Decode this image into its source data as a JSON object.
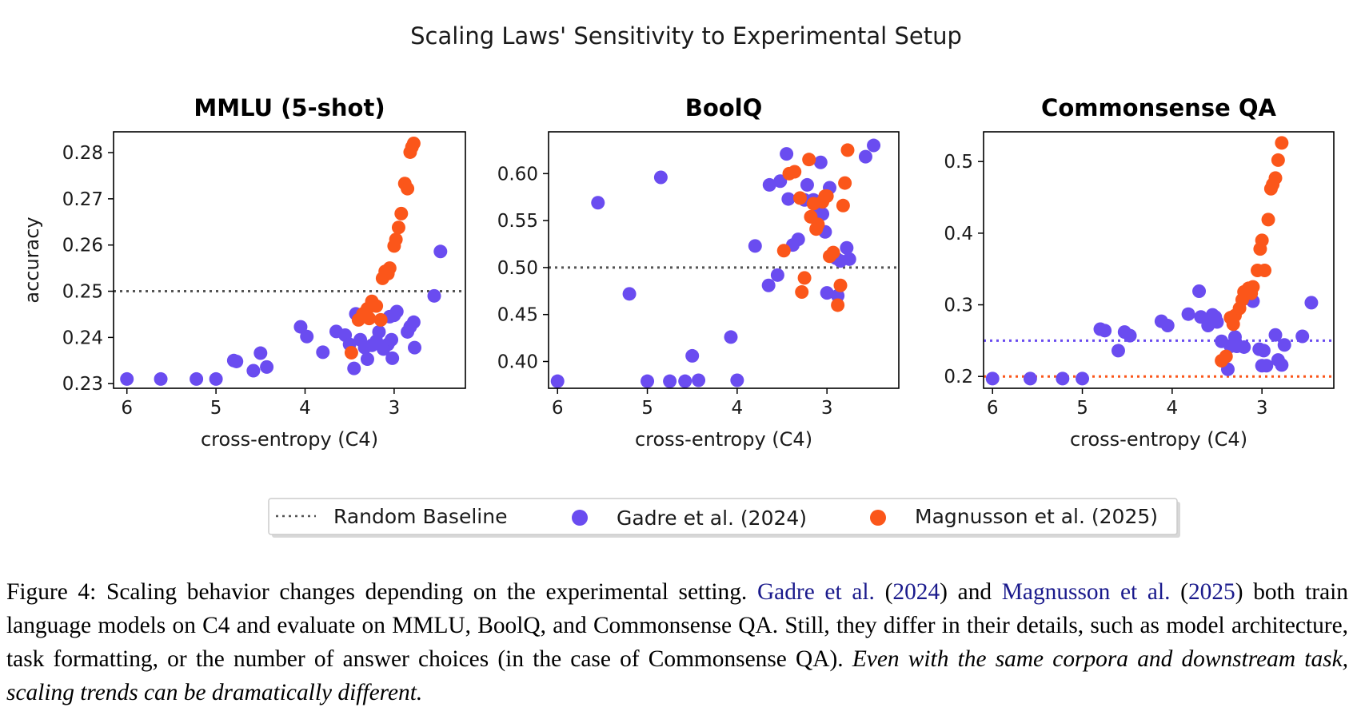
{
  "figure": {
    "suptitle": "Scaling Laws' Sensitivity to Experimental Setup"
  },
  "legend": {
    "baseline": "Random Baseline",
    "gadre": "Gadre et al. (2024)",
    "magnusson": "Magnusson et al. (2025)"
  },
  "colors": {
    "gadre": "#6a4cf0",
    "magnusson": "#fb561a",
    "baseline": "#555555"
  },
  "caption": {
    "lead": "Figure 4: Scaling behavior changes depending on the experimental setting.",
    "ref1_name": "Gadre et al.",
    "ref1_year": "2024",
    "and": "and",
    "ref2_name": "Magnusson et al.",
    "ref2_year": "2025",
    "body": "both train language models on C4 and evaluate on MMLU, BoolQ, and Commonsense QA. Still, they differ in their details, such as model architecture, task formatting, or the number of answer choices (in the case of Commonsense QA).",
    "emphasis": "Even with the same corpora and downstream task, scaling trends can be dramatically different."
  },
  "chart_data": [
    {
      "type": "scatter",
      "title": "MMLU (5-shot)",
      "xlabel": "cross-entropy (C4)",
      "ylabel": "accuracy",
      "x_reversed": true,
      "xlim": [
        6.15,
        2.2
      ],
      "ylim": [
        0.229,
        0.2845
      ],
      "xticks": [
        6,
        5,
        4,
        3
      ],
      "yticks": [
        0.23,
        0.24,
        0.25,
        0.26,
        0.27,
        0.28
      ],
      "ytick_labels": [
        "0.23",
        "0.24",
        "0.25",
        "0.26",
        "0.27",
        "0.28"
      ],
      "baselines": [
        {
          "y": 0.25,
          "series": "baseline"
        }
      ],
      "series": [
        {
          "name": "Gadre et al. (2024)",
          "color_key": "gadre",
          "points": [
            [
              6.0,
              0.231
            ],
            [
              5.62,
              0.231
            ],
            [
              5.22,
              0.231
            ],
            [
              5.0,
              0.231
            ],
            [
              4.8,
              0.235
            ],
            [
              4.77,
              0.2348
            ],
            [
              4.58,
              0.2328
            ],
            [
              4.5,
              0.2366
            ],
            [
              4.43,
              0.2336
            ],
            [
              4.05,
              0.2423
            ],
            [
              3.98,
              0.2402
            ],
            [
              3.8,
              0.2368
            ],
            [
              3.65,
              0.2413
            ],
            [
              3.55,
              0.2405
            ],
            [
              3.5,
              0.2385
            ],
            [
              3.45,
              0.2333
            ],
            [
              3.43,
              0.2451
            ],
            [
              3.38,
              0.2395
            ],
            [
              3.33,
              0.2378
            ],
            [
              3.3,
              0.2353
            ],
            [
              3.25,
              0.2383
            ],
            [
              3.2,
              0.2392
            ],
            [
              3.17,
              0.2412
            ],
            [
              3.12,
              0.2375
            ],
            [
              3.07,
              0.2385
            ],
            [
              3.05,
              0.2445
            ],
            [
              3.03,
              0.2395
            ],
            [
              3.02,
              0.2355
            ],
            [
              3.0,
              0.2448
            ],
            [
              2.97,
              0.2456
            ],
            [
              2.85,
              0.2412
            ],
            [
              2.82,
              0.2423
            ],
            [
              2.78,
              0.2433
            ],
            [
              2.77,
              0.2378
            ],
            [
              2.55,
              0.249
            ],
            [
              2.48,
              0.2586
            ]
          ]
        },
        {
          "name": "Magnusson et al. (2025)",
          "color_key": "magnusson",
          "points": [
            [
              3.48,
              0.2367
            ],
            [
              3.4,
              0.2438
            ],
            [
              3.35,
              0.2451
            ],
            [
              3.3,
              0.2462
            ],
            [
              3.28,
              0.2441
            ],
            [
              3.25,
              0.2478
            ],
            [
              3.2,
              0.2468
            ],
            [
              3.15,
              0.2438
            ],
            [
              3.13,
              0.2528
            ],
            [
              3.1,
              0.2543
            ],
            [
              3.07,
              0.2538
            ],
            [
              3.05,
              0.255
            ],
            [
              3.0,
              0.2598
            ],
            [
              2.98,
              0.2612
            ],
            [
              2.95,
              0.2638
            ],
            [
              2.92,
              0.2668
            ],
            [
              2.88,
              0.2733
            ],
            [
              2.85,
              0.2722
            ],
            [
              2.82,
              0.2801
            ],
            [
              2.8,
              0.2812
            ],
            [
              2.78,
              0.282
            ]
          ]
        }
      ]
    },
    {
      "type": "scatter",
      "title": "BoolQ",
      "xlabel": "cross-entropy (C4)",
      "ylabel": "",
      "x_reversed": true,
      "xlim": [
        6.1,
        2.2
      ],
      "ylim": [
        0.3715,
        0.6445
      ],
      "xticks": [
        6,
        5,
        4,
        3
      ],
      "yticks": [
        0.4,
        0.45,
        0.5,
        0.55,
        0.6
      ],
      "ytick_labels": [
        "0.40",
        "0.45",
        "0.50",
        "0.55",
        "0.60"
      ],
      "baselines": [
        {
          "y": 0.5,
          "series": "baseline"
        }
      ],
      "series": [
        {
          "name": "Gadre et al. (2024)",
          "color_key": "gadre",
          "points": [
            [
              6.0,
              0.379
            ],
            [
              5.55,
              0.569
            ],
            [
              5.2,
              0.472
            ],
            [
              5.0,
              0.379
            ],
            [
              4.85,
              0.596
            ],
            [
              4.75,
              0.379
            ],
            [
              4.58,
              0.379
            ],
            [
              4.5,
              0.406
            ],
            [
              4.43,
              0.38
            ],
            [
              4.07,
              0.426
            ],
            [
              4.0,
              0.38
            ],
            [
              3.8,
              0.523
            ],
            [
              3.65,
              0.481
            ],
            [
              3.64,
              0.588
            ],
            [
              3.52,
              0.592
            ],
            [
              3.55,
              0.492
            ],
            [
              3.45,
              0.621
            ],
            [
              3.43,
              0.573
            ],
            [
              3.38,
              0.524
            ],
            [
              3.32,
              0.53
            ],
            [
              3.25,
              0.572
            ],
            [
              3.22,
              0.588
            ],
            [
              3.15,
              0.572
            ],
            [
              3.1,
              0.565
            ],
            [
              3.07,
              0.612
            ],
            [
              3.05,
              0.557
            ],
            [
              3.02,
              0.538
            ],
            [
              3.0,
              0.473
            ],
            [
              2.97,
              0.585
            ],
            [
              2.9,
              0.51
            ],
            [
              2.88,
              0.47
            ],
            [
              2.85,
              0.507
            ],
            [
              2.78,
              0.521
            ],
            [
              2.75,
              0.509
            ],
            [
              2.57,
              0.618
            ],
            [
              2.48,
              0.63
            ]
          ]
        },
        {
          "name": "Magnusson et al. (2025)",
          "color_key": "magnusson",
          "points": [
            [
              3.48,
              0.518
            ],
            [
              3.42,
              0.6
            ],
            [
              3.36,
              0.602
            ],
            [
              3.3,
              0.574
            ],
            [
              3.28,
              0.474
            ],
            [
              3.25,
              0.489
            ],
            [
              3.2,
              0.615
            ],
            [
              3.18,
              0.554
            ],
            [
              3.15,
              0.568
            ],
            [
              3.12,
              0.541
            ],
            [
              3.1,
              0.546
            ],
            [
              3.05,
              0.57
            ],
            [
              3.02,
              0.576
            ],
            [
              3.0,
              0.576
            ],
            [
              2.97,
              0.512
            ],
            [
              2.93,
              0.516
            ],
            [
              2.88,
              0.46
            ],
            [
              2.85,
              0.481
            ],
            [
              2.82,
              0.566
            ],
            [
              2.8,
              0.59
            ],
            [
              2.77,
              0.625
            ]
          ]
        }
      ]
    },
    {
      "type": "scatter",
      "title": "Commonsense QA",
      "xlabel": "cross-entropy (C4)",
      "ylabel": "",
      "x_reversed": true,
      "xlim": [
        6.1,
        2.2
      ],
      "ylim": [
        0.1835,
        0.5415
      ],
      "xticks": [
        6,
        5,
        4,
        3
      ],
      "yticks": [
        0.2,
        0.3,
        0.4,
        0.5
      ],
      "ytick_labels": [
        "0.2",
        "0.3",
        "0.4",
        "0.5"
      ],
      "baselines": [
        {
          "y": 0.25,
          "series": "gadre"
        },
        {
          "y": 0.2,
          "series": "magnusson"
        }
      ],
      "series": [
        {
          "name": "Gadre et al. (2024)",
          "color_key": "gadre",
          "points": [
            [
              6.0,
              0.197
            ],
            [
              5.58,
              0.197
            ],
            [
              5.22,
              0.197
            ],
            [
              5.0,
              0.197
            ],
            [
              4.8,
              0.266
            ],
            [
              4.75,
              0.264
            ],
            [
              4.6,
              0.236
            ],
            [
              4.53,
              0.262
            ],
            [
              4.47,
              0.257
            ],
            [
              4.12,
              0.277
            ],
            [
              4.05,
              0.271
            ],
            [
              3.82,
              0.287
            ],
            [
              3.7,
              0.319
            ],
            [
              3.68,
              0.283
            ],
            [
              3.6,
              0.271
            ],
            [
              3.55,
              0.286
            ],
            [
              3.52,
              0.283
            ],
            [
              3.5,
              0.276
            ],
            [
              3.45,
              0.249
            ],
            [
              3.38,
              0.21
            ],
            [
              3.35,
              0.242
            ],
            [
              3.3,
              0.255
            ],
            [
              3.28,
              0.242
            ],
            [
              3.2,
              0.241
            ],
            [
              3.15,
              0.309
            ],
            [
              3.1,
              0.305
            ],
            [
              3.0,
              0.215
            ],
            [
              3.03,
              0.238
            ],
            [
              2.98,
              0.236
            ],
            [
              2.95,
              0.215
            ],
            [
              2.85,
              0.258
            ],
            [
              2.82,
              0.223
            ],
            [
              2.78,
              0.216
            ],
            [
              2.75,
              0.244
            ],
            [
              2.55,
              0.256
            ],
            [
              2.45,
              0.303
            ]
          ]
        },
        {
          "name": "Magnusson et al. (2025)",
          "color_key": "magnusson",
          "points": [
            [
              3.45,
              0.222
            ],
            [
              3.4,
              0.228
            ],
            [
              3.35,
              0.282
            ],
            [
              3.32,
              0.273
            ],
            [
              3.3,
              0.285
            ],
            [
              3.25,
              0.295
            ],
            [
              3.22,
              0.307
            ],
            [
              3.2,
              0.318
            ],
            [
              3.15,
              0.323
            ],
            [
              3.12,
              0.316
            ],
            [
              3.1,
              0.325
            ],
            [
              3.05,
              0.348
            ],
            [
              3.02,
              0.378
            ],
            [
              3.0,
              0.39
            ],
            [
              2.97,
              0.348
            ],
            [
              2.93,
              0.419
            ],
            [
              2.9,
              0.462
            ],
            [
              2.88,
              0.468
            ],
            [
              2.85,
              0.477
            ],
            [
              2.82,
              0.502
            ],
            [
              2.78,
              0.526
            ]
          ]
        }
      ]
    }
  ]
}
